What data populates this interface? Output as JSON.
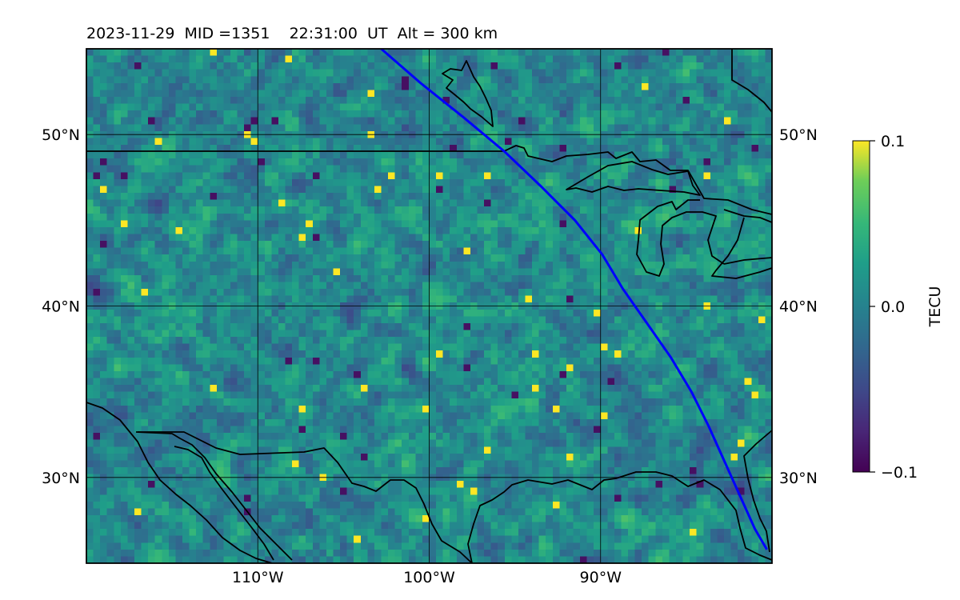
{
  "title": "2023-11-29  MID =1351    22:31:00  UT  Alt = 300 km",
  "map": {
    "lon_range": [
      -120,
      -80
    ],
    "lat_range": [
      25,
      55
    ],
    "lat_ticks": [
      {
        "value": 50,
        "label": "50°N"
      },
      {
        "value": 40,
        "label": "40°N"
      },
      {
        "value": 30,
        "label": "30°N"
      }
    ],
    "lon_ticks": [
      {
        "value": -110,
        "label": "110°W"
      },
      {
        "value": -100,
        "label": "100°W"
      },
      {
        "value": -90,
        "label": "90°W"
      }
    ],
    "track_color": "#0000ff",
    "track_path": [
      [
        -102.8,
        55.0
      ],
      [
        -100.5,
        53.0
      ],
      [
        -98.0,
        51.0
      ],
      [
        -95.6,
        49.0
      ],
      [
        -93.5,
        47.0
      ],
      [
        -91.5,
        45.0
      ],
      [
        -89.9,
        43.0
      ],
      [
        -88.7,
        41.0
      ],
      [
        -87.3,
        39.0
      ],
      [
        -85.9,
        37.0
      ],
      [
        -84.7,
        35.0
      ],
      [
        -83.7,
        33.0
      ],
      [
        -82.8,
        31.0
      ],
      [
        -81.9,
        29.0
      ],
      [
        -81.0,
        27.0
      ],
      [
        -80.3,
        25.8
      ]
    ],
    "coastline_color": "#000000",
    "colormap": "viridis",
    "field_bias": 0.006
  },
  "colorbar": {
    "label": "TECU",
    "min": -0.1,
    "max": 0.1,
    "ticks": [
      {
        "value": 0.1,
        "label": "0.1"
      },
      {
        "value": 0.0,
        "label": "0.0"
      },
      {
        "value": -0.1,
        "label": "−0.1"
      }
    ]
  }
}
